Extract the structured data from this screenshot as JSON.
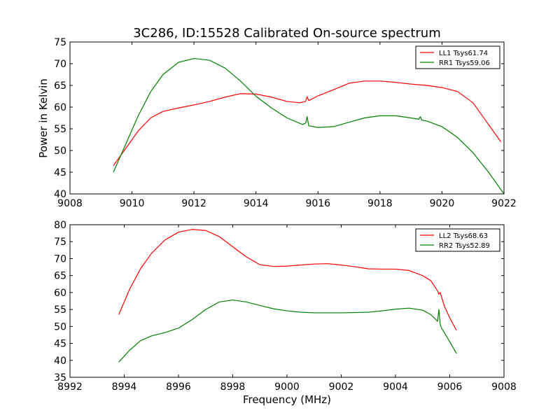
{
  "figure": {
    "title": "3C286, ID:15528 Calibrated On-source spectrum",
    "xlabel": "Frequency (MHz)",
    "ylabel": "Power in Kelvin"
  },
  "colors": {
    "LL": "#ff0000",
    "RR": "#008000",
    "axes": "#000000",
    "background": "#ffffff"
  },
  "chart_data": [
    {
      "type": "line",
      "title": "3C286, ID:15528 Calibrated On-source spectrum",
      "xlabel": "",
      "ylabel": "Power in Kelvin",
      "xlim": [
        9008,
        9022
      ],
      "ylim": [
        40,
        75
      ],
      "xticks": [
        9008,
        9010,
        9012,
        9014,
        9016,
        9018,
        9020,
        9022
      ],
      "yticks": [
        40,
        45,
        50,
        55,
        60,
        65,
        70,
        75
      ],
      "grid": false,
      "legend_position": "top-right",
      "series": [
        {
          "name": "LL1 Tsys61.74",
          "color": "#ff0000",
          "x": [
            9009.4,
            9009.8,
            9010.2,
            9010.6,
            9011.0,
            9011.5,
            9012.0,
            9012.5,
            9013.0,
            9013.5,
            9014.0,
            9014.5,
            9015.0,
            9015.4,
            9015.6,
            9015.65,
            9015.7,
            9016.0,
            9016.5,
            9017.0,
            9017.5,
            9018.0,
            9018.5,
            9019.0,
            9019.5,
            9020.0,
            9020.5,
            9021.0,
            9021.5,
            9021.9
          ],
          "y": [
            46.5,
            50.5,
            54.5,
            57.5,
            59.0,
            59.8,
            60.5,
            61.3,
            62.3,
            63.1,
            63.0,
            62.3,
            61.3,
            61.0,
            61.3,
            62.4,
            61.5,
            62.6,
            64.0,
            65.5,
            66.0,
            66.0,
            65.7,
            65.3,
            65.0,
            64.5,
            63.6,
            61.0,
            56.0,
            52.0
          ]
        },
        {
          "name": "RR1 Tsys59.06",
          "color": "#008000",
          "x": [
            9009.4,
            9009.8,
            9010.2,
            9010.6,
            9011.0,
            9011.5,
            9012.0,
            9012.5,
            9013.0,
            9013.5,
            9014.0,
            9014.5,
            9015.0,
            9015.5,
            9015.6,
            9015.65,
            9015.7,
            9016.0,
            9016.5,
            9017.0,
            9017.5,
            9018.0,
            9018.5,
            9019.0,
            9019.25,
            9019.3,
            9019.35,
            9019.5,
            9020.0,
            9020.5,
            9021.0,
            9021.5,
            9022.0
          ],
          "y": [
            45.0,
            51.5,
            58.0,
            63.5,
            67.5,
            70.3,
            71.2,
            70.8,
            69.0,
            66.0,
            62.5,
            59.8,
            57.5,
            56.0,
            56.3,
            57.8,
            55.7,
            55.3,
            55.5,
            56.5,
            57.5,
            58.0,
            58.0,
            57.5,
            57.2,
            57.8,
            57.0,
            56.8,
            55.5,
            53.0,
            49.5,
            45.0,
            40.0
          ]
        }
      ]
    },
    {
      "type": "line",
      "title": "",
      "xlabel": "Frequency (MHz)",
      "ylabel": "",
      "xlim": [
        8992,
        9008
      ],
      "ylim": [
        35,
        80
      ],
      "xticks": [
        8992,
        8994,
        8996,
        8998,
        9000,
        9002,
        9004,
        9006,
        9008
      ],
      "yticks": [
        35,
        40,
        45,
        50,
        55,
        60,
        65,
        70,
        75,
        80
      ],
      "grid": false,
      "legend_position": "top-right",
      "series": [
        {
          "name": "LL2 Tsys68.63",
          "color": "#ff0000",
          "x": [
            8993.8,
            8994.2,
            8994.6,
            8995.0,
            8995.5,
            8996.0,
            8996.5,
            8997.0,
            8997.5,
            8998.0,
            8998.5,
            8999.0,
            8999.5,
            9000.0,
            9000.5,
            9001.0,
            9001.5,
            9002.0,
            9002.5,
            9003.0,
            9003.5,
            9004.0,
            9004.5,
            9005.0,
            9005.3,
            9005.55,
            9005.6,
            9005.65,
            9005.8,
            9006.0,
            9006.25
          ],
          "y": [
            53.5,
            61.0,
            67.0,
            71.5,
            75.5,
            77.8,
            78.6,
            78.3,
            76.5,
            73.5,
            70.5,
            68.2,
            67.7,
            67.8,
            68.1,
            68.4,
            68.5,
            68.1,
            67.6,
            67.0,
            66.9,
            66.9,
            66.5,
            65.0,
            63.5,
            60.5,
            59.5,
            60.0,
            56.0,
            52.5,
            48.8
          ]
        },
        {
          "name": "RR2 Tsys52.89",
          "color": "#008000",
          "x": [
            8993.8,
            8994.2,
            8994.6,
            8995.0,
            8995.5,
            8996.0,
            8996.5,
            8997.0,
            8997.5,
            8998.0,
            8998.5,
            8999.0,
            8999.5,
            9000.0,
            9000.5,
            9001.0,
            9001.5,
            9002.0,
            9002.5,
            9003.0,
            9003.5,
            9004.0,
            9004.5,
            9005.0,
            9005.3,
            9005.55,
            9005.6,
            9005.65,
            9005.7,
            9006.0,
            9006.25
          ],
          "y": [
            39.5,
            43.0,
            45.8,
            47.2,
            48.2,
            49.5,
            52.0,
            55.0,
            57.2,
            57.8,
            57.2,
            56.2,
            55.2,
            54.6,
            54.2,
            54.0,
            54.0,
            54.0,
            54.1,
            54.2,
            54.6,
            55.1,
            55.4,
            54.8,
            53.5,
            51.5,
            55.0,
            50.5,
            49.5,
            45.5,
            42.0
          ]
        }
      ]
    }
  ]
}
